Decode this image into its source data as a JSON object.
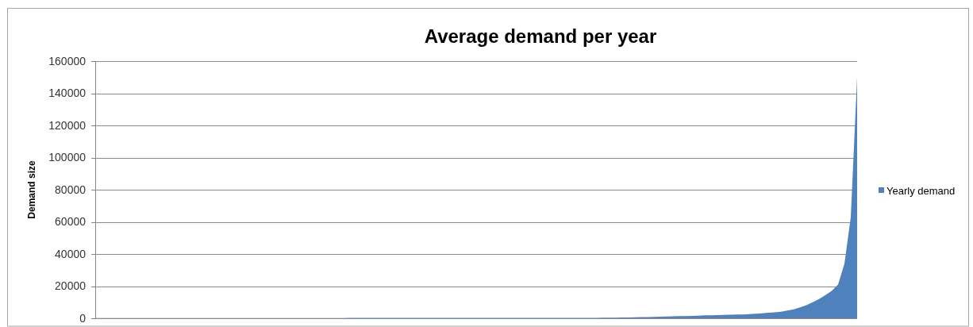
{
  "chart_data": {
    "type": "area",
    "title": "Average demand per year",
    "ylabel": "Demand size",
    "categories": [
      null,
      null,
      null,
      null,
      null,
      null,
      null,
      null,
      null,
      null,
      null,
      null,
      null,
      null,
      null,
      null,
      null,
      null,
      null,
      null,
      null,
      null,
      null,
      null,
      null,
      null,
      null,
      null,
      null,
      null,
      null,
      null,
      null,
      null,
      null,
      null,
      null,
      null,
      null,
      null,
      null,
      null,
      null,
      null,
      null,
      null,
      null,
      null,
      null,
      null,
      null,
      null,
      null,
      null,
      null,
      null,
      null,
      null,
      null,
      null,
      null,
      null,
      null,
      null,
      null,
      null,
      null,
      null,
      null,
      null,
      null,
      null,
      null,
      null,
      null,
      null,
      null,
      null,
      null,
      null,
      null,
      null,
      null,
      null,
      null,
      null,
      null,
      null,
      null,
      null,
      null,
      null,
      null,
      null,
      null,
      null,
      null,
      null,
      null,
      null,
      null,
      null,
      null,
      null,
      null,
      null,
      null,
      null,
      null,
      null,
      null,
      null,
      null,
      null,
      null,
      null,
      null,
      null,
      null,
      null,
      null
    ],
    "series": [
      {
        "name": "Yearly demand",
        "color": "#4f81bd",
        "values": [
          100,
          100,
          100,
          100,
          100,
          100,
          100,
          100,
          100,
          100,
          100,
          100,
          100,
          100,
          100,
          100,
          100,
          100,
          100,
          100,
          100,
          100,
          100,
          100,
          100,
          100,
          100,
          100,
          100,
          100,
          100,
          100,
          100,
          100,
          100,
          100,
          100,
          100,
          100,
          100,
          200,
          200,
          200,
          200,
          200,
          200,
          200,
          200,
          200,
          200,
          200,
          200,
          200,
          200,
          200,
          200,
          200,
          200,
          200,
          200,
          200,
          200,
          200,
          200,
          200,
          200,
          200,
          200,
          200,
          200,
          300,
          300,
          300,
          300,
          300,
          300,
          300,
          300,
          300,
          300,
          400,
          400,
          400,
          500,
          500,
          600,
          700,
          800,
          900,
          1000,
          1100,
          1200,
          1300,
          1400,
          1500,
          1600,
          1800,
          1900,
          2000,
          2100,
          2200,
          2300,
          2400,
          2600,
          2800,
          3100,
          3400,
          3700,
          4100,
          4800,
          5600,
          6800,
          8200,
          10000,
          12000,
          14500,
          17000,
          21000,
          34000,
          63000,
          150000
        ]
      }
    ],
    "ylim": [
      0,
      160000
    ],
    "yticks": [
      0,
      20000,
      40000,
      60000,
      80000,
      100000,
      120000,
      140000,
      160000
    ],
    "grid": "y",
    "legend": "right"
  }
}
